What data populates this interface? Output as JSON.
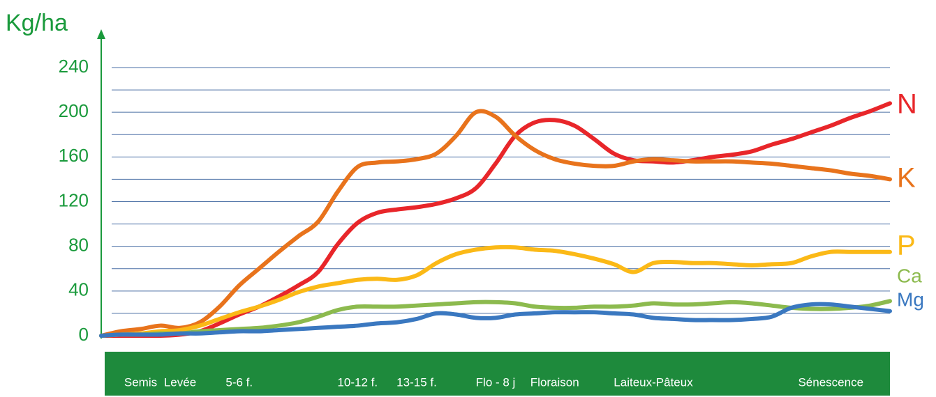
{
  "chart_data": {
    "type": "line",
    "y_label": "Kg/ha",
    "categories": [
      null,
      null,
      "Semis",
      null,
      "Levée",
      null,
      null,
      "5-6 f.",
      null,
      null,
      null,
      null,
      null,
      "10-12 f.",
      null,
      null,
      "13-15 f.",
      null,
      null,
      null,
      "Flo - 8 j",
      null,
      null,
      "Floraison",
      null,
      null,
      null,
      null,
      "Laiteux-Pâteux",
      null,
      null,
      null,
      null,
      null,
      null,
      null,
      null,
      "Sénescence",
      null,
      null,
      null
    ],
    "series": [
      {
        "name": "N",
        "color": "#e8262a",
        "values": [
          0,
          0,
          0,
          0,
          1,
          4,
          11,
          19,
          26,
          35,
          45,
          57,
          82,
          101,
          110,
          113,
          115,
          118,
          123,
          132,
          154,
          179,
          191,
          193,
          188,
          176,
          163,
          157,
          156,
          155,
          157,
          160,
          162,
          165,
          171,
          176,
          182,
          188,
          195,
          201,
          208
        ]
      },
      {
        "name": "K",
        "color": "#e8731c",
        "values": [
          0,
          4,
          6,
          9,
          7,
          12,
          26,
          45,
          60,
          75,
          89,
          102,
          129,
          151,
          155,
          156,
          158,
          163,
          179,
          200,
          196,
          179,
          166,
          158,
          154,
          152,
          152,
          156,
          158,
          157,
          156,
          156,
          156,
          155,
          154,
          152,
          150,
          148,
          145,
          143,
          140
        ]
      },
      {
        "name": "P",
        "color": "#fbb917",
        "values": [
          0,
          1,
          2,
          4,
          5,
          9,
          15,
          21,
          26,
          32,
          39,
          44,
          47,
          50,
          51,
          50,
          54,
          65,
          73,
          77,
          79,
          79,
          77,
          76,
          73,
          69,
          64,
          57,
          65,
          66,
          65,
          65,
          64,
          63,
          64,
          65,
          71,
          75,
          75,
          75,
          75
        ]
      },
      {
        "name": "Ca",
        "color": "#8cba4e",
        "values": [
          0,
          1,
          1,
          2,
          2,
          4,
          5,
          6,
          7,
          9,
          12,
          17,
          23,
          26,
          26,
          26,
          27,
          28,
          29,
          30,
          30,
          29,
          26,
          25,
          25,
          26,
          26,
          27,
          29,
          28,
          28,
          29,
          30,
          29,
          27,
          25,
          24,
          24,
          25,
          27,
          31
        ]
      },
      {
        "name": "Mg",
        "color": "#3a78c0",
        "values": [
          0,
          1,
          1,
          1,
          2,
          2,
          3,
          4,
          4,
          5,
          6,
          7,
          8,
          9,
          11,
          12,
          15,
          20,
          19,
          16,
          16,
          19,
          20,
          21,
          21,
          21,
          20,
          19,
          16,
          15,
          14,
          14,
          14,
          15,
          17,
          25,
          28,
          28,
          26,
          24,
          22
        ]
      }
    ],
    "ylim": [
      0,
      240
    ],
    "yticks": [
      0,
      40,
      80,
      120,
      160,
      200,
      240
    ],
    "grid_lines": [
      20,
      40,
      60,
      80,
      100,
      120,
      140,
      160,
      180,
      200,
      220,
      240
    ],
    "grid_color": "#4a6fa5",
    "axis_color": "#1a9a3c",
    "band_color": "#1e8a3c"
  }
}
